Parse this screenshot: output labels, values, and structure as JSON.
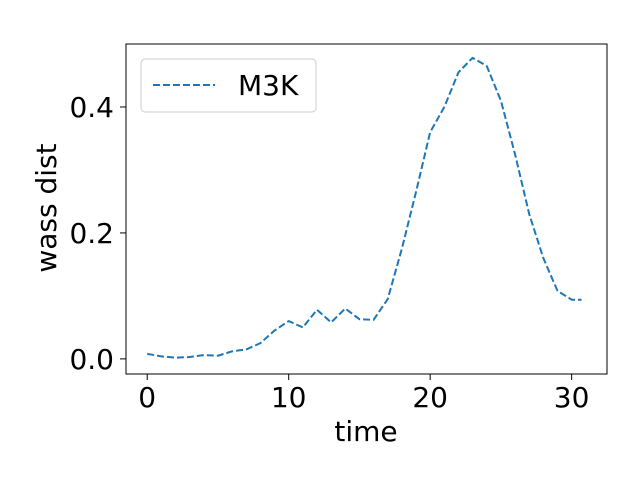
{
  "chart_data": {
    "type": "line",
    "title": "",
    "xlabel": "time",
    "ylabel": "wass dist",
    "xlim": [
      -1.5,
      32.5
    ],
    "ylim": [
      -0.024,
      0.5
    ],
    "xticks": [
      0,
      10,
      20,
      30
    ],
    "yticks": [
      0.0,
      0.2,
      0.4
    ],
    "xtick_labels": [
      "0",
      "10",
      "20",
      "30"
    ],
    "ytick_labels": [
      "0.0",
      "0.2",
      "0.4"
    ],
    "grid": false,
    "legend_position": "upper-left",
    "series": [
      {
        "name": "M3K",
        "color": "#1f77b4",
        "line_style": "dashed",
        "x": [
          0,
          1,
          2,
          3,
          4,
          5,
          6,
          7,
          8,
          9,
          10,
          11,
          12,
          13,
          14,
          15,
          16,
          17,
          18,
          19,
          20,
          21,
          22,
          23,
          24,
          25,
          26,
          27,
          28,
          29,
          30,
          30.7
        ],
        "values": [
          0.008,
          0.004,
          0.002,
          0.003,
          0.006,
          0.005,
          0.012,
          0.015,
          0.025,
          0.045,
          0.06,
          0.05,
          0.078,
          0.058,
          0.08,
          0.063,
          0.062,
          0.095,
          0.175,
          0.265,
          0.36,
          0.4,
          0.455,
          0.478,
          0.465,
          0.41,
          0.325,
          0.23,
          0.16,
          0.108,
          0.094,
          0.094
        ]
      }
    ]
  }
}
